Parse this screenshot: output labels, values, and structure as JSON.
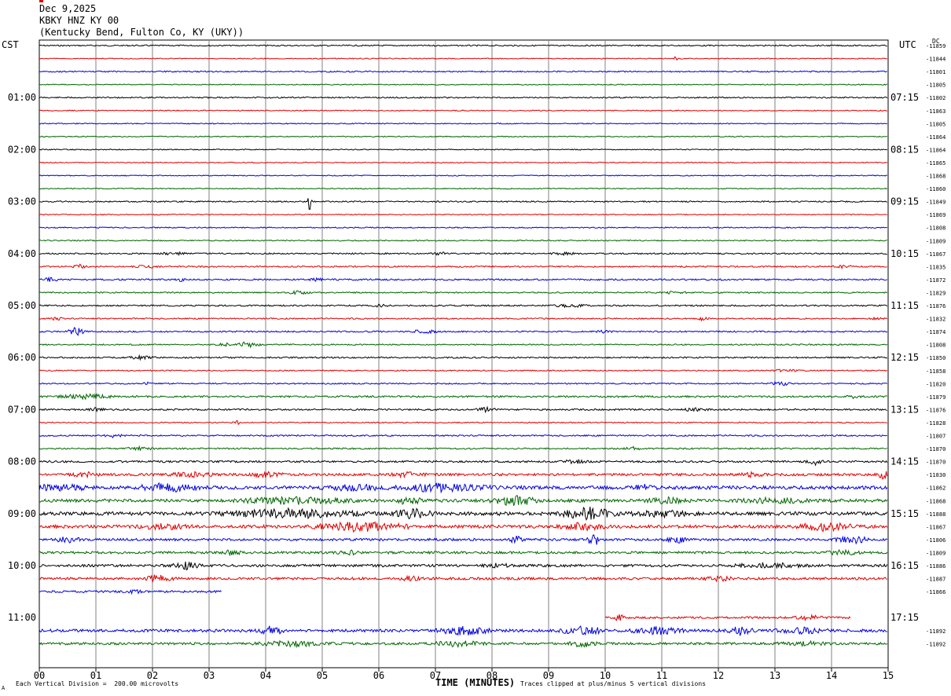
{
  "header": {
    "date": "Dec 9,2025",
    "station": "KBKY HNZ KY 00",
    "location": "(Kentucky Bend, Fulton Co, KY (UKY))"
  },
  "left_tz": "CST",
  "right_tz": "UTC",
  "dc_label": "DC",
  "footer": {
    "scale": "Each Vertical Division =  200.00 microvolts",
    "clip": "Traces clipped at plus/minus 5 vertical divisions",
    "corner_mark": "A"
  },
  "colors": {
    "black": "#000000",
    "red": "#e00000",
    "blue": "#0000dd",
    "green": "#006600",
    "grid": "#808080"
  },
  "chart_data": {
    "type": "line",
    "subtype": "helicorder seismogram",
    "xlabel": "TIME (MINUTES)",
    "xlim": [
      0,
      15
    ],
    "x_tick_labels": [
      "00",
      "01",
      "02",
      "03",
      "04",
      "05",
      "06",
      "07",
      "08",
      "09",
      "10",
      "11",
      "12",
      "13",
      "14",
      "15"
    ],
    "grid": true,
    "line_minutes": 15,
    "color_cycle": [
      "black",
      "red",
      "blue",
      "green"
    ],
    "left_time_labels": [
      {
        "text": "01:00",
        "line": 4
      },
      {
        "text": "02:00",
        "line": 8
      },
      {
        "text": "03:00",
        "line": 12
      },
      {
        "text": "04:00",
        "line": 16
      },
      {
        "text": "05:00",
        "line": 20
      },
      {
        "text": "06:00",
        "line": 24
      },
      {
        "text": "07:00",
        "line": 28
      },
      {
        "text": "08:00",
        "line": 32
      },
      {
        "text": "09:00",
        "line": 36
      },
      {
        "text": "10:00",
        "line": 40
      },
      {
        "text": "11:00",
        "line": 44
      }
    ],
    "right_time_labels": [
      {
        "text": "07:15",
        "line": 4
      },
      {
        "text": "08:15",
        "line": 8
      },
      {
        "text": "09:15",
        "line": 12
      },
      {
        "text": "10:15",
        "line": 16
      },
      {
        "text": "11:15",
        "line": 20
      },
      {
        "text": "12:15",
        "line": 24
      },
      {
        "text": "13:15",
        "line": 28
      },
      {
        "text": "14:15",
        "line": 32
      },
      {
        "text": "15:15",
        "line": 36
      },
      {
        "text": "16:15",
        "line": 40
      },
      {
        "text": "17:15",
        "line": 44
      }
    ],
    "traces": [
      {
        "line": 0,
        "color": "black",
        "start": 0,
        "end": 15,
        "noise": 0.8,
        "dc": "-11859"
      },
      {
        "line": 1,
        "color": "red",
        "start": 0,
        "end": 15,
        "noise": 0.6,
        "dc": "-11844",
        "events": [
          [
            11.25,
            4,
            0.05
          ]
        ]
      },
      {
        "line": 2,
        "color": "blue",
        "start": 0,
        "end": 15,
        "noise": 0.8,
        "dc": "-11801"
      },
      {
        "line": 3,
        "color": "green",
        "start": 0,
        "end": 15,
        "noise": 0.6,
        "dc": "-11805"
      },
      {
        "line": 4,
        "color": "black",
        "start": 0,
        "end": 15,
        "noise": 0.8,
        "dc": "-11802"
      },
      {
        "line": 5,
        "color": "red",
        "start": 0,
        "end": 15,
        "noise": 0.6,
        "dc": "-11863"
      },
      {
        "line": 6,
        "color": "blue",
        "start": 0,
        "end": 15,
        "noise": 0.6,
        "dc": "-11805"
      },
      {
        "line": 7,
        "color": "green",
        "start": 0,
        "end": 15,
        "noise": 0.6,
        "dc": "-11864"
      },
      {
        "line": 8,
        "color": "black",
        "start": 0,
        "end": 15,
        "noise": 0.6,
        "dc": "-11864"
      },
      {
        "line": 9,
        "color": "red",
        "start": 0,
        "end": 15,
        "noise": 0.6,
        "dc": "-11865"
      },
      {
        "line": 10,
        "color": "blue",
        "start": 0,
        "end": 15,
        "noise": 0.6,
        "dc": "-11868"
      },
      {
        "line": 11,
        "color": "green",
        "start": 0,
        "end": 15,
        "noise": 0.6,
        "dc": "-11860"
      },
      {
        "line": 12,
        "color": "black",
        "start": 0,
        "end": 15,
        "noise": 0.8,
        "dc": "-11849",
        "events": [
          [
            4.78,
            14,
            0.04
          ]
        ]
      },
      {
        "line": 13,
        "color": "red",
        "start": 0,
        "end": 15,
        "noise": 0.6,
        "dc": "-11869"
      },
      {
        "line": 14,
        "color": "blue",
        "start": 0,
        "end": 15,
        "noise": 0.7,
        "dc": "-11808"
      },
      {
        "line": 15,
        "color": "green",
        "start": 0,
        "end": 15,
        "noise": 0.7,
        "dc": "-11809"
      },
      {
        "line": 16,
        "color": "black",
        "start": 0,
        "end": 15,
        "noise": 0.9,
        "dc": "-11867",
        "events": [
          [
            2.4,
            2,
            0.3
          ],
          [
            7.1,
            1.5,
            0.2
          ],
          [
            9.3,
            1.5,
            0.3
          ]
        ]
      },
      {
        "line": 17,
        "color": "red",
        "start": 0,
        "end": 15,
        "noise": 0.9,
        "dc": "-11835",
        "events": [
          [
            0.7,
            2.5,
            0.15
          ],
          [
            1.9,
            1.5,
            0.3
          ],
          [
            14.2,
            2,
            0.2
          ]
        ]
      },
      {
        "line": 18,
        "color": "blue",
        "start": 0,
        "end": 15,
        "noise": 1.0,
        "dc": "-11872",
        "events": [
          [
            0.2,
            2,
            0.2
          ],
          [
            2.5,
            2,
            0.1
          ],
          [
            4.9,
            1.5,
            0.15
          ]
        ]
      },
      {
        "line": 19,
        "color": "green",
        "start": 0,
        "end": 15,
        "noise": 0.8,
        "dc": "-11829",
        "events": [
          [
            4.6,
            2,
            0.25
          ],
          [
            11.2,
            1.5,
            0.3
          ]
        ]
      },
      {
        "line": 20,
        "color": "black",
        "start": 0,
        "end": 15,
        "noise": 0.9,
        "dc": "-11876",
        "events": [
          [
            9.4,
            2,
            0.4
          ],
          [
            6.0,
            1.5,
            0.2
          ]
        ]
      },
      {
        "line": 21,
        "color": "red",
        "start": 0,
        "end": 15,
        "noise": 0.8,
        "dc": "-11832",
        "events": [
          [
            0.3,
            2,
            0.15
          ],
          [
            11.7,
            2,
            0.15
          ],
          [
            14.8,
            1.5,
            0.15
          ]
        ]
      },
      {
        "line": 22,
        "color": "blue",
        "start": 0,
        "end": 15,
        "noise": 0.9,
        "dc": "-11874",
        "events": [
          [
            0.65,
            5,
            0.2
          ],
          [
            6.8,
            2,
            0.3
          ],
          [
            10.0,
            1.5,
            0.2
          ]
        ]
      },
      {
        "line": 23,
        "color": "green",
        "start": 0,
        "end": 15,
        "noise": 0.8,
        "dc": "-11808",
        "events": [
          [
            3.7,
            4,
            0.25
          ],
          [
            3.3,
            1.5,
            0.2
          ]
        ]
      },
      {
        "line": 24,
        "color": "black",
        "start": 0,
        "end": 15,
        "noise": 0.9,
        "dc": "-11850",
        "events": [
          [
            1.8,
            2,
            0.3
          ]
        ]
      },
      {
        "line": 25,
        "color": "red",
        "start": 0,
        "end": 15,
        "noise": 0.7,
        "dc": "-11858",
        "events": [
          [
            13.2,
            1.5,
            0.3
          ]
        ]
      },
      {
        "line": 26,
        "color": "blue",
        "start": 0,
        "end": 15,
        "noise": 0.8,
        "dc": "-11820",
        "events": [
          [
            1.9,
            1.5,
            0.1
          ],
          [
            13.1,
            3,
            0.2
          ]
        ]
      },
      {
        "line": 27,
        "color": "green",
        "start": 0,
        "end": 15,
        "noise": 1.1,
        "dc": "-11879",
        "events": [
          [
            0.8,
            3,
            0.6
          ],
          [
            14.4,
            2,
            0.2
          ]
        ]
      },
      {
        "line": 28,
        "color": "black",
        "start": 0,
        "end": 15,
        "noise": 1.0,
        "dc": "-11876",
        "events": [
          [
            1.0,
            2,
            0.2
          ],
          [
            7.9,
            2.5,
            0.25
          ],
          [
            11.6,
            2,
            0.3
          ]
        ]
      },
      {
        "line": 29,
        "color": "red",
        "start": 0,
        "end": 15,
        "noise": 0.7,
        "dc": "-11828",
        "events": [
          [
            3.5,
            2,
            0.1
          ]
        ]
      },
      {
        "line": 30,
        "color": "blue",
        "start": 0,
        "end": 15,
        "noise": 0.9,
        "dc": "-11807",
        "events": [
          [
            1.3,
            2,
            0.2
          ]
        ]
      },
      {
        "line": 31,
        "color": "green",
        "start": 0,
        "end": 15,
        "noise": 0.9,
        "dc": "-11870",
        "events": [
          [
            1.8,
            2,
            0.3
          ],
          [
            10.5,
            2,
            0.2
          ]
        ]
      },
      {
        "line": 32,
        "color": "black",
        "start": 0,
        "end": 15,
        "noise": 1.2,
        "dc": "-11870",
        "events": [
          [
            13.7,
            4,
            0.2
          ],
          [
            9.5,
            2,
            0.3
          ]
        ]
      },
      {
        "line": 33,
        "color": "red",
        "start": 0,
        "end": 15,
        "noise": 1.6,
        "dc": "-11830",
        "events": [
          [
            0.8,
            2.5,
            0.3
          ],
          [
            2.7,
            2.5,
            0.5
          ],
          [
            4.0,
            3,
            0.4
          ],
          [
            6.5,
            2.5,
            0.4
          ],
          [
            12.6,
            2.5,
            0.3
          ],
          [
            14.9,
            4,
            0.2
          ]
        ]
      },
      {
        "line": 34,
        "color": "blue",
        "start": 0,
        "end": 15,
        "noise": 2.2,
        "dc": "-11862",
        "events": [
          [
            0.3,
            3.5,
            0.8
          ],
          [
            2.3,
            5,
            0.7
          ],
          [
            5.5,
            3,
            0.8
          ],
          [
            7.0,
            4,
            1.2
          ],
          [
            10.7,
            3,
            0.3
          ]
        ]
      },
      {
        "line": 35,
        "color": "green",
        "start": 0,
        "end": 15,
        "noise": 2.0,
        "dc": "-11868",
        "events": [
          [
            4.5,
            4,
            1.2
          ],
          [
            6.5,
            5,
            0.3
          ],
          [
            8.4,
            6,
            0.5
          ],
          [
            11.1,
            3,
            0.5
          ],
          [
            13.0,
            3,
            0.7
          ]
        ]
      },
      {
        "line": 36,
        "color": "black",
        "start": 0,
        "end": 15,
        "noise": 2.2,
        "dc": "-11888",
        "events": [
          [
            4.5,
            5,
            1.5
          ],
          [
            6.6,
            6,
            0.4
          ],
          [
            9.7,
            7,
            0.6
          ],
          [
            11.0,
            3,
            0.8
          ]
        ]
      },
      {
        "line": 37,
        "color": "red",
        "start": 0,
        "end": 15,
        "noise": 2.0,
        "dc": "-11867",
        "events": [
          [
            2.2,
            3,
            0.6
          ],
          [
            5.7,
            6,
            1.0
          ],
          [
            9.6,
            4,
            0.5
          ],
          [
            13.9,
            5,
            0.6
          ]
        ]
      },
      {
        "line": 38,
        "color": "blue",
        "start": 0,
        "end": 15,
        "noise": 1.5,
        "dc": "-11806",
        "events": [
          [
            0.5,
            3,
            0.3
          ],
          [
            8.4,
            4,
            0.2
          ],
          [
            9.8,
            8,
            0.15
          ],
          [
            11.3,
            3,
            0.3
          ],
          [
            14.4,
            4,
            0.4
          ]
        ]
      },
      {
        "line": 39,
        "color": "green",
        "start": 0,
        "end": 15,
        "noise": 1.5,
        "dc": "-11809",
        "events": [
          [
            3.4,
            2.5,
            0.3
          ],
          [
            5.5,
            2,
            0.3
          ],
          [
            14.2,
            2.5,
            0.4
          ]
        ]
      },
      {
        "line": 40,
        "color": "black",
        "start": 0,
        "end": 15,
        "noise": 1.6,
        "dc": "-11886",
        "events": [
          [
            2.6,
            4,
            0.3
          ],
          [
            8.1,
            2,
            0.3
          ],
          [
            12.9,
            3,
            0.8
          ]
        ]
      },
      {
        "line": 41,
        "color": "red",
        "start": 0,
        "end": 15,
        "noise": 1.6,
        "dc": "-11887",
        "events": [
          [
            2.1,
            4,
            0.4
          ],
          [
            6.5,
            3,
            0.3
          ],
          [
            12.0,
            2.5,
            0.3
          ]
        ]
      },
      {
        "line": 42,
        "color": "blue",
        "start": 0,
        "end": 3.22,
        "noise": 1.3,
        "dc": "-11866",
        "events": [
          [
            1.7,
            2.5,
            0.2
          ]
        ]
      },
      {
        "line": 44,
        "color": "red",
        "start": 10.0,
        "end": 14.35,
        "noise": 1.3,
        "dc": "",
        "events": [
          [
            10.25,
            5,
            0.1
          ],
          [
            13.6,
            3,
            0.3
          ]
        ]
      },
      {
        "line": 45,
        "color": "blue",
        "start": 0,
        "end": 15,
        "noise": 1.8,
        "dc": "-11892",
        "events": [
          [
            4.1,
            5,
            0.3
          ],
          [
            7.5,
            5,
            0.6
          ],
          [
            9.6,
            5,
            0.5
          ],
          [
            10.9,
            4,
            0.6
          ],
          [
            12.4,
            5,
            0.3
          ],
          [
            13.5,
            3,
            0.6
          ]
        ]
      },
      {
        "line": 46,
        "color": "green",
        "start": 0,
        "end": 15,
        "noise": 1.5,
        "dc": "-11892",
        "events": [
          [
            4.5,
            3,
            0.8
          ],
          [
            7.4,
            3,
            0.6
          ],
          [
            9.6,
            4,
            0.3
          ],
          [
            13.5,
            2.5,
            0.6
          ]
        ]
      }
    ]
  }
}
